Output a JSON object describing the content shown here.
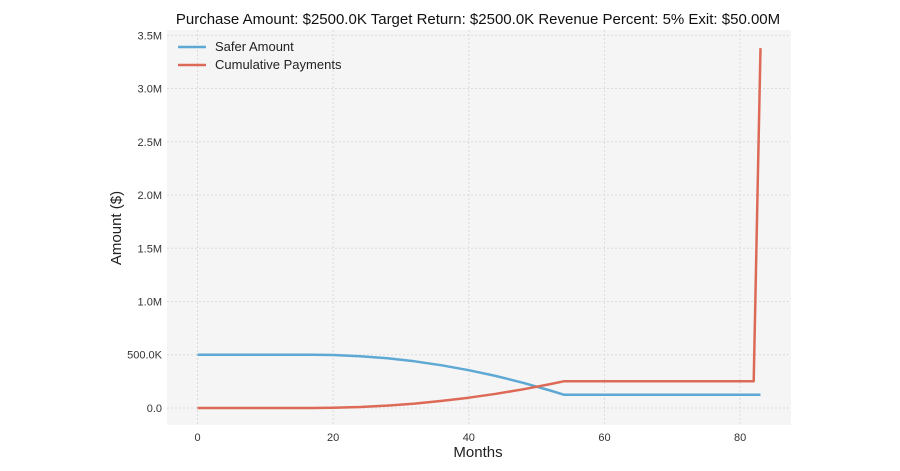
{
  "chart_data": {
    "type": "line",
    "title": "Purchase Amount: $2500.0K Target Return: $2500.0K Revenue Percent: 5% Exit: $50.00M",
    "xlabel": "Months",
    "ylabel": "Amount ($)",
    "xlim": [
      -4.5,
      87.5
    ],
    "ylim": [
      -160000,
      3550000
    ],
    "xticks": [
      0,
      20,
      40,
      60,
      80
    ],
    "xtick_labels": [
      "0",
      "20",
      "40",
      "60",
      "80"
    ],
    "yticks": [
      0,
      500000,
      1000000,
      1500000,
      2000000,
      2500000,
      3000000,
      3500000
    ],
    "ytick_labels": [
      "0.0",
      "500.0K",
      "1.0M",
      "1.5M",
      "2.0M",
      "2.5M",
      "3.0M",
      "3.5M"
    ],
    "grid": true,
    "legend_position": "top-left",
    "background": "#f5f5f5",
    "series": [
      {
        "name": "Safer Amount",
        "color": "#5ea8d4",
        "x": [
          0,
          17,
          20,
          24,
          28,
          32,
          36,
          40,
          44,
          48,
          52,
          54,
          83
        ],
        "y": [
          500000,
          500000,
          497500,
          486600,
          466900,
          438400,
          401100,
          355100,
          300300,
          236800,
          164500,
          125000,
          125000
        ]
      },
      {
        "name": "Cumulative Payments",
        "color": "#dd6a57",
        "x": [
          0,
          17,
          20,
          24,
          28,
          32,
          36,
          40,
          44,
          48,
          52,
          54,
          82,
          83
        ],
        "y": [
          0,
          0,
          1600,
          9000,
          22100,
          41100,
          65900,
          96600,
          133100,
          175500,
          223700,
          250000,
          250000,
          3380000
        ]
      }
    ]
  }
}
